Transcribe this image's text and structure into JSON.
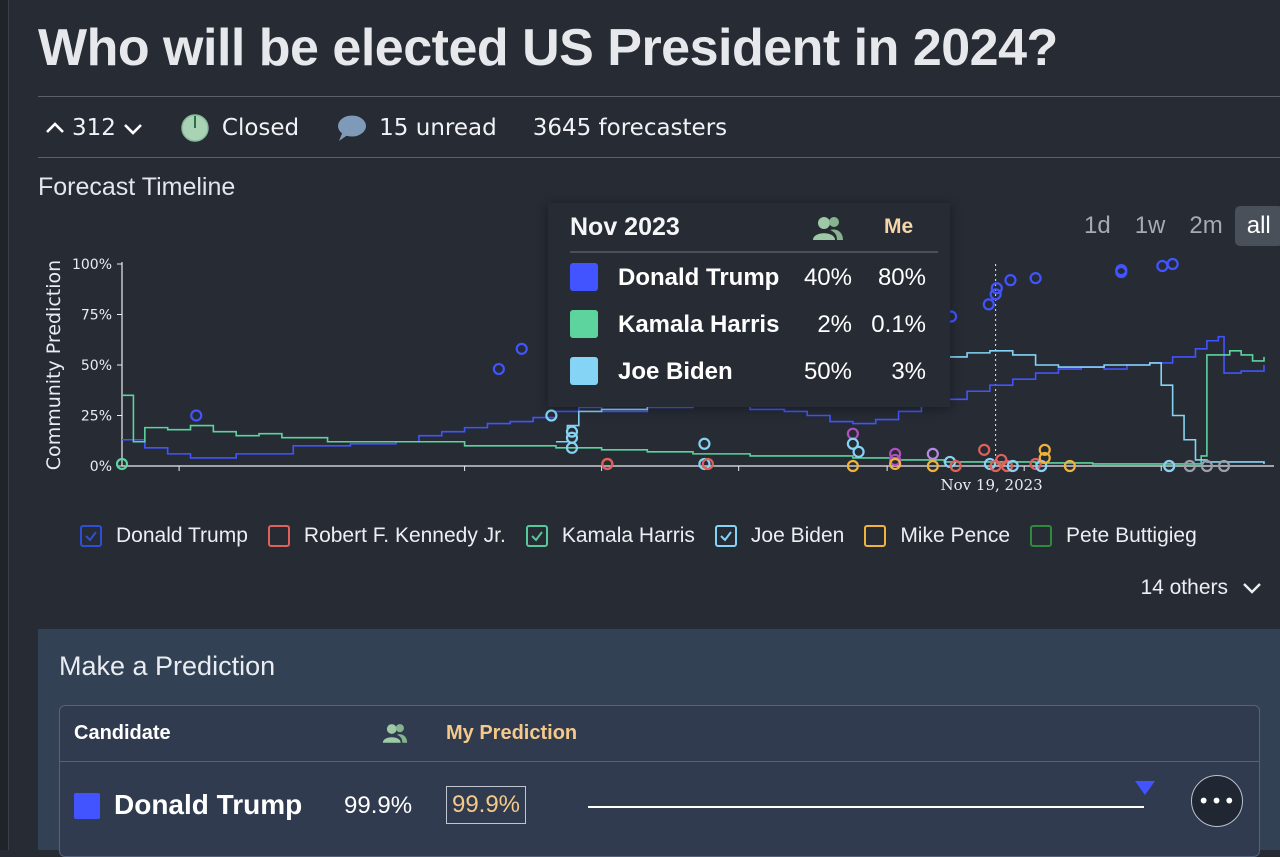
{
  "question": {
    "title": "Who will be elected US President in 2024?"
  },
  "stats": {
    "votes": "312",
    "status": "Closed",
    "comments": "15 unread",
    "forecasters": "3645 forecasters"
  },
  "timeline": {
    "heading": "Forecast Timeline",
    "ranges": [
      "1d",
      "1w",
      "2m",
      "all"
    ],
    "active_range": "all"
  },
  "tooltip": {
    "month": "Nov 2023",
    "me_label": "Me",
    "rows": [
      {
        "name": "Donald Trump",
        "community": "40%",
        "me": "80%",
        "color": "#4254ff"
      },
      {
        "name": "Kamala Harris",
        "community": "2%",
        "me": "0.1%",
        "color": "#5dd39e"
      },
      {
        "name": "Joe Biden",
        "community": "50%",
        "me": "3%",
        "color": "#86d4f5"
      }
    ]
  },
  "legend": {
    "items": [
      {
        "name": "Donald Trump",
        "color": "#2d4fd8",
        "checked": true
      },
      {
        "name": "Robert F. Kennedy Jr.",
        "color": "#e0605a",
        "checked": false
      },
      {
        "name": "Kamala Harris",
        "color": "#54c99b",
        "checked": true
      },
      {
        "name": "Joe Biden",
        "color": "#86d4f5",
        "checked": true
      },
      {
        "name": "Mike Pence",
        "color": "#f0b23a",
        "checked": false
      },
      {
        "name": "Pete Buttigieg",
        "color": "#2f8a3a",
        "checked": false
      }
    ],
    "others": "14 others"
  },
  "chart_data": {
    "type": "line",
    "ylabel": "Community Prediction",
    "yticks": [
      "0%",
      "25%",
      "50%",
      "75%",
      "100%"
    ],
    "ylim": [
      0,
      100
    ],
    "marker_label": "Nov 19, 2023",
    "series": [
      {
        "name": "Donald Trump",
        "color": "#4254ff",
        "values": [
          [
            0,
            13
          ],
          [
            0.02,
            9
          ],
          [
            0.04,
            6
          ],
          [
            0.06,
            4
          ],
          [
            0.1,
            6
          ],
          [
            0.15,
            10
          ],
          [
            0.2,
            11
          ],
          [
            0.24,
            12
          ],
          [
            0.26,
            15
          ],
          [
            0.28,
            17
          ],
          [
            0.3,
            19
          ],
          [
            0.32,
            21
          ],
          [
            0.34,
            22
          ],
          [
            0.36,
            24
          ],
          [
            0.38,
            27
          ],
          [
            0.4,
            29
          ],
          [
            0.42,
            27
          ],
          [
            0.46,
            29
          ],
          [
            0.5,
            30
          ],
          [
            0.55,
            28
          ],
          [
            0.58,
            27
          ],
          [
            0.6,
            25
          ],
          [
            0.62,
            22
          ],
          [
            0.64,
            21
          ],
          [
            0.66,
            23
          ],
          [
            0.68,
            27
          ],
          [
            0.7,
            30
          ],
          [
            0.72,
            33
          ],
          [
            0.74,
            37
          ],
          [
            0.76,
            40
          ],
          [
            0.78,
            43
          ],
          [
            0.8,
            46
          ],
          [
            0.82,
            48
          ],
          [
            0.84,
            49
          ],
          [
            0.86,
            48
          ],
          [
            0.88,
            50
          ],
          [
            0.9,
            51
          ],
          [
            0.92,
            54
          ],
          [
            0.94,
            58
          ],
          [
            0.95,
            62
          ],
          [
            0.96,
            64
          ],
          [
            0.965,
            46
          ],
          [
            0.98,
            47
          ],
          [
            0.99,
            47
          ],
          [
            1,
            50
          ]
        ]
      },
      {
        "name": "Kamala Harris",
        "color": "#5dd39e",
        "values": [
          [
            0,
            35
          ],
          [
            0.01,
            12
          ],
          [
            0.02,
            19
          ],
          [
            0.04,
            18
          ],
          [
            0.06,
            20
          ],
          [
            0.08,
            17
          ],
          [
            0.1,
            15
          ],
          [
            0.12,
            16
          ],
          [
            0.14,
            14
          ],
          [
            0.18,
            12
          ],
          [
            0.22,
            12
          ],
          [
            0.26,
            12
          ],
          [
            0.3,
            10
          ],
          [
            0.34,
            10
          ],
          [
            0.38,
            9
          ],
          [
            0.42,
            8
          ],
          [
            0.46,
            7
          ],
          [
            0.5,
            6
          ],
          [
            0.55,
            5
          ],
          [
            0.6,
            5
          ],
          [
            0.64,
            4
          ],
          [
            0.68,
            3
          ],
          [
            0.72,
            2
          ],
          [
            0.76,
            2
          ],
          [
            0.8,
            1.5
          ],
          [
            0.85,
            1
          ],
          [
            0.9,
            1
          ],
          [
            0.93,
            1
          ],
          [
            0.94,
            1
          ],
          [
            0.945,
            5
          ],
          [
            0.95,
            55
          ],
          [
            0.96,
            55
          ],
          [
            0.97,
            57
          ],
          [
            0.98,
            55
          ],
          [
            0.99,
            52
          ],
          [
            1,
            54
          ]
        ]
      },
      {
        "name": "Joe Biden",
        "color": "#86d4f5",
        "values": [
          [
            0.38,
            12
          ],
          [
            0.39,
            20
          ],
          [
            0.4,
            27
          ],
          [
            0.42,
            28
          ],
          [
            0.46,
            30
          ],
          [
            0.5,
            31
          ],
          [
            0.54,
            32
          ],
          [
            0.58,
            33
          ],
          [
            0.62,
            34
          ],
          [
            0.66,
            35
          ],
          [
            0.68,
            40
          ],
          [
            0.7,
            50
          ],
          [
            0.72,
            54
          ],
          [
            0.74,
            56
          ],
          [
            0.76,
            57
          ],
          [
            0.78,
            55
          ],
          [
            0.8,
            50
          ],
          [
            0.82,
            49
          ],
          [
            0.84,
            49
          ],
          [
            0.86,
            50
          ],
          [
            0.88,
            50
          ],
          [
            0.9,
            51
          ],
          [
            0.91,
            40
          ],
          [
            0.92,
            25
          ],
          [
            0.93,
            13
          ],
          [
            0.94,
            3
          ],
          [
            0.95,
            2
          ],
          [
            1,
            1
          ]
        ]
      }
    ]
  },
  "prediction": {
    "heading": "Make a Prediction",
    "col_candidate": "Candidate",
    "col_my": "My Prediction",
    "rows": [
      {
        "name": "Donald Trump",
        "community": "99.9%",
        "mine": "99.9%",
        "color": "#4254ff",
        "value": 99.9
      }
    ],
    "more_label": "•••"
  }
}
